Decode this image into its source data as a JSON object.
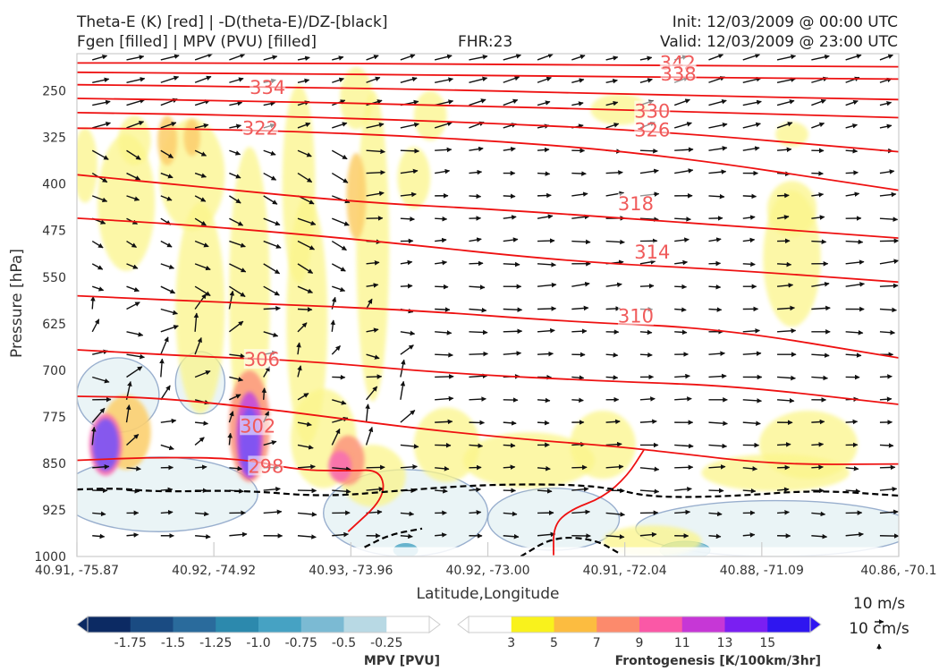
{
  "header": {
    "title_line1": "Theta-E (K) [red] | -D(theta-E)/DZ-[black]",
    "title_line2": "Fgen [filled] | MPV (PVU) [filled]",
    "fhr": "FHR:23",
    "init": "Init: 12/03/2009 @ 00:00 UTC",
    "valid": "Valid: 12/03/2009 @ 23:00 UTC"
  },
  "chart_data": {
    "type": "cross-section",
    "xlabel": "Latitude,Longitude",
    "ylabel": "Pressure [hPa]",
    "x_ticks": [
      "40.91, -75.87",
      "40.92, -74.92",
      "40.93, -73.96",
      "40.92, -73.00",
      "40.91, -72.04",
      "40.88, -71.09",
      "40.86, -70.1"
    ],
    "y_ticks": [
      250,
      325,
      400,
      475,
      550,
      625,
      700,
      775,
      850,
      925,
      1000
    ],
    "ylim": [
      1000,
      190
    ],
    "theta_e_contours": [
      {
        "label": "342",
        "level": 342,
        "points": [
          [
            0,
            205
          ],
          [
            0.2,
            205
          ],
          [
            0.5,
            207
          ],
          [
            0.72,
            209
          ],
          [
            1,
            211
          ]
        ]
      },
      {
        "label": "338",
        "level": 338,
        "points": [
          [
            0,
            220
          ],
          [
            0.2,
            222
          ],
          [
            0.5,
            225
          ],
          [
            0.72,
            228
          ],
          [
            1,
            231
          ]
        ]
      },
      {
        "label": "334",
        "level": 334,
        "points": [
          [
            0,
            240
          ],
          [
            0.2,
            243
          ],
          [
            0.45,
            248
          ],
          [
            0.72,
            257
          ],
          [
            1,
            264
          ]
        ]
      },
      {
        "label": "330",
        "level": 330,
        "points": [
          [
            0,
            262
          ],
          [
            0.2,
            266
          ],
          [
            0.45,
            273
          ],
          [
            0.7,
            282
          ],
          [
            1,
            293
          ]
        ]
      },
      {
        "label": "326",
        "level": 326,
        "points": [
          [
            0,
            285
          ],
          [
            0.2,
            289
          ],
          [
            0.45,
            299
          ],
          [
            0.7,
            314
          ],
          [
            1,
            348
          ]
        ]
      },
      {
        "label": "322",
        "level": 322,
        "points": [
          [
            0,
            310
          ],
          [
            0.2,
            312
          ],
          [
            0.45,
            325
          ],
          [
            0.7,
            350
          ],
          [
            1,
            410
          ]
        ]
      },
      {
        "label": "318",
        "level": 318,
        "points": [
          [
            0,
            385
          ],
          [
            0.15,
            405
          ],
          [
            0.35,
            430
          ],
          [
            0.5,
            440
          ],
          [
            0.7,
            458
          ],
          [
            1,
            487
          ]
        ]
      },
      {
        "label": "314",
        "level": 314,
        "points": [
          [
            0,
            455
          ],
          [
            0.15,
            467
          ],
          [
            0.35,
            490
          ],
          [
            0.6,
            525
          ],
          [
            0.78,
            537
          ],
          [
            1,
            558
          ]
        ]
      },
      {
        "label": "310",
        "level": 310,
        "points": [
          [
            0,
            580
          ],
          [
            0.2,
            592
          ],
          [
            0.4,
            602
          ],
          [
            0.6,
            622
          ],
          [
            0.78,
            632
          ],
          [
            1,
            680
          ]
        ]
      },
      {
        "label": "306",
        "level": 306,
        "points": [
          [
            0,
            667
          ],
          [
            0.15,
            678
          ],
          [
            0.28,
            685
          ],
          [
            0.45,
            705
          ],
          [
            0.65,
            718
          ],
          [
            0.8,
            725
          ],
          [
            1,
            755
          ]
        ]
      },
      {
        "label": "302",
        "level": 302,
        "points": [
          [
            0,
            742
          ],
          [
            0.1,
            744
          ],
          [
            0.25,
            765
          ],
          [
            0.4,
            792
          ],
          [
            0.55,
            812
          ],
          [
            0.65,
            822
          ],
          [
            0.72,
            832
          ],
          [
            0.85,
            852
          ],
          [
            1,
            851
          ]
        ]
      },
      {
        "label": "298",
        "level": 298,
        "points": [
          [
            0,
            845
          ],
          [
            0.1,
            840
          ],
          [
            0.2,
            842
          ],
          [
            0.27,
            861
          ],
          [
            0.33,
            862
          ],
          [
            0.37,
            860
          ],
          [
            0.375,
            905
          ],
          [
            0.33,
            960
          ]
        ]
      }
    ],
    "contour_labels": [
      {
        "text": "342",
        "x": 0.731,
        "p": 205
      },
      {
        "text": "338",
        "x": 0.732,
        "p": 223
      },
      {
        "text": "334",
        "x": 0.232,
        "p": 245
      },
      {
        "text": "330",
        "x": 0.7,
        "p": 283
      },
      {
        "text": "326",
        "x": 0.7,
        "p": 313
      },
      {
        "text": "322",
        "x": 0.223,
        "p": 310
      },
      {
        "text": "318",
        "x": 0.68,
        "p": 432
      },
      {
        "text": "314",
        "x": 0.7,
        "p": 510
      },
      {
        "text": "310",
        "x": 0.68,
        "p": 613
      },
      {
        "text": "306",
        "x": 0.225,
        "p": 683
      },
      {
        "text": "302",
        "x": 0.22,
        "p": 790
      },
      {
        "text": "298",
        "x": 0.23,
        "p": 855
      }
    ],
    "stability_contour": {
      "points": [
        [
          0,
          892
        ],
        [
          0.05,
          890
        ],
        [
          0.1,
          896
        ],
        [
          0.2,
          893
        ],
        [
          0.3,
          904
        ],
        [
          0.4,
          893
        ],
        [
          0.5,
          884
        ],
        [
          0.6,
          884
        ],
        [
          0.65,
          890
        ],
        [
          0.7,
          905
        ],
        [
          0.8,
          903
        ],
        [
          0.9,
          893
        ],
        [
          1,
          902
        ]
      ]
    },
    "fgen_blobs": [
      {
        "x": 0.01,
        "p": 370,
        "rx": 0.015,
        "rp": 60,
        "level": 3
      },
      {
        "x": 0.06,
        "p": 430,
        "rx": 0.035,
        "rp": 110,
        "level": 3
      },
      {
        "x": 0.07,
        "p": 330,
        "rx": 0.02,
        "rp": 40,
        "level": 3
      },
      {
        "x": 0.14,
        "p": 385,
        "rx": 0.04,
        "rp": 90,
        "level": 3
      },
      {
        "x": 0.15,
        "p": 600,
        "rx": 0.03,
        "rp": 170,
        "level": 3
      },
      {
        "x": 0.21,
        "p": 580,
        "rx": 0.025,
        "rp": 240,
        "level": 3
      },
      {
        "x": 0.27,
        "p": 400,
        "rx": 0.02,
        "rp": 160,
        "level": 3
      },
      {
        "x": 0.28,
        "p": 620,
        "rx": 0.025,
        "rp": 200,
        "level": 3
      },
      {
        "x": 0.3,
        "p": 810,
        "rx": 0.04,
        "rp": 80,
        "level": 3
      },
      {
        "x": 0.36,
        "p": 500,
        "rx": 0.02,
        "rp": 250,
        "level": 3
      },
      {
        "x": 0.36,
        "p": 870,
        "rx": 0.04,
        "rp": 50,
        "level": 3
      },
      {
        "x": 0.41,
        "p": 390,
        "rx": 0.02,
        "rp": 50,
        "level": 3
      },
      {
        "x": 0.34,
        "p": 262,
        "rx": 0.02,
        "rp": 50,
        "level": 3
      },
      {
        "x": 0.43,
        "p": 290,
        "rx": 0.02,
        "rp": 40,
        "level": 3
      },
      {
        "x": 0.45,
        "p": 820,
        "rx": 0.04,
        "rp": 60,
        "level": 3
      },
      {
        "x": 0.55,
        "p": 845,
        "rx": 0.08,
        "rp": 45,
        "level": 3
      },
      {
        "x": 0.64,
        "p": 820,
        "rx": 0.04,
        "rp": 55,
        "level": 3
      },
      {
        "x": 0.66,
        "p": 280,
        "rx": 0.035,
        "rp": 25,
        "level": 3
      },
      {
        "x": 0.87,
        "p": 520,
        "rx": 0.035,
        "rp": 110,
        "level": 3
      },
      {
        "x": 0.87,
        "p": 440,
        "rx": 0.03,
        "rp": 45,
        "level": 3
      },
      {
        "x": 0.89,
        "p": 820,
        "rx": 0.06,
        "rp": 55,
        "level": 3
      },
      {
        "x": 0.85,
        "p": 865,
        "rx": 0.09,
        "rp": 30,
        "level": 3
      },
      {
        "x": 0.7,
        "p": 975,
        "rx": 0.06,
        "rp": 25,
        "level": 3
      },
      {
        "x": 0.87,
        "p": 320,
        "rx": 0.02,
        "rp": 20,
        "level": 3
      },
      {
        "x": 0.06,
        "p": 800,
        "rx": 0.03,
        "rp": 60,
        "level": 5
      },
      {
        "x": 0.21,
        "p": 790,
        "rx": 0.025,
        "rp": 90,
        "level": 7
      },
      {
        "x": 0.34,
        "p": 420,
        "rx": 0.012,
        "rp": 70,
        "level": 5
      },
      {
        "x": 0.33,
        "p": 845,
        "rx": 0.02,
        "rp": 40,
        "level": 7
      },
      {
        "x": 0.11,
        "p": 330,
        "rx": 0.012,
        "rp": 40,
        "level": 5
      },
      {
        "x": 0.14,
        "p": 325,
        "rx": 0.01,
        "rp": 30,
        "level": 5
      },
      {
        "x": 0.035,
        "p": 820,
        "rx": 0.02,
        "rp": 50,
        "level": 9
      },
      {
        "x": 0.21,
        "p": 805,
        "rx": 0.016,
        "rp": 70,
        "level": 11
      },
      {
        "x": 0.32,
        "p": 855,
        "rx": 0.014,
        "rp": 25,
        "level": 9
      },
      {
        "x": 0.035,
        "p": 820,
        "rx": 0.016,
        "rp": 42,
        "level": 13
      },
      {
        "x": 0.21,
        "p": 815,
        "rx": 0.012,
        "rp": 55,
        "level": 13
      }
    ],
    "mpv_regions": [
      {
        "x": 0.05,
        "p": 740,
        "rx": 0.05,
        "rp": 60
      },
      {
        "x": 0.15,
        "p": 720,
        "rx": 0.03,
        "rp": 50
      },
      {
        "x": 0.1,
        "p": 900,
        "rx": 0.12,
        "rp": 60
      },
      {
        "x": 0.4,
        "p": 930,
        "rx": 0.1,
        "rp": 70
      },
      {
        "x": 0.58,
        "p": 940,
        "rx": 0.08,
        "rp": 50
      },
      {
        "x": 0.85,
        "p": 955,
        "rx": 0.17,
        "rp": 45
      }
    ],
    "mpv_colorbar": {
      "label": "MPV [PVU]",
      "ticks": [
        "-1.75",
        "-1.5",
        "-1.25",
        "-1.0",
        "-0.75",
        "-0.5",
        "-0.25"
      ],
      "colors": [
        "#0c2a63",
        "#1a4b82",
        "#2a6b9c",
        "#2c89ad",
        "#46a2c3",
        "#7bbad3",
        "#b8d9e4",
        "#ffffff"
      ]
    },
    "fgen_colorbar": {
      "label": "Frontogenesis [K/100km/3hr]",
      "ticks": [
        "3",
        "5",
        "7",
        "9",
        "11",
        "13",
        "15"
      ],
      "colors": [
        "#ffffff",
        "#f9f21c",
        "#fcbc40",
        "#fc8a6c",
        "#fa58a6",
        "#c637d6",
        "#7a1ff2",
        "#2f16f0"
      ]
    },
    "wind_scale": {
      "label1": "10 m/s",
      "label2": "10 cm/s"
    }
  }
}
